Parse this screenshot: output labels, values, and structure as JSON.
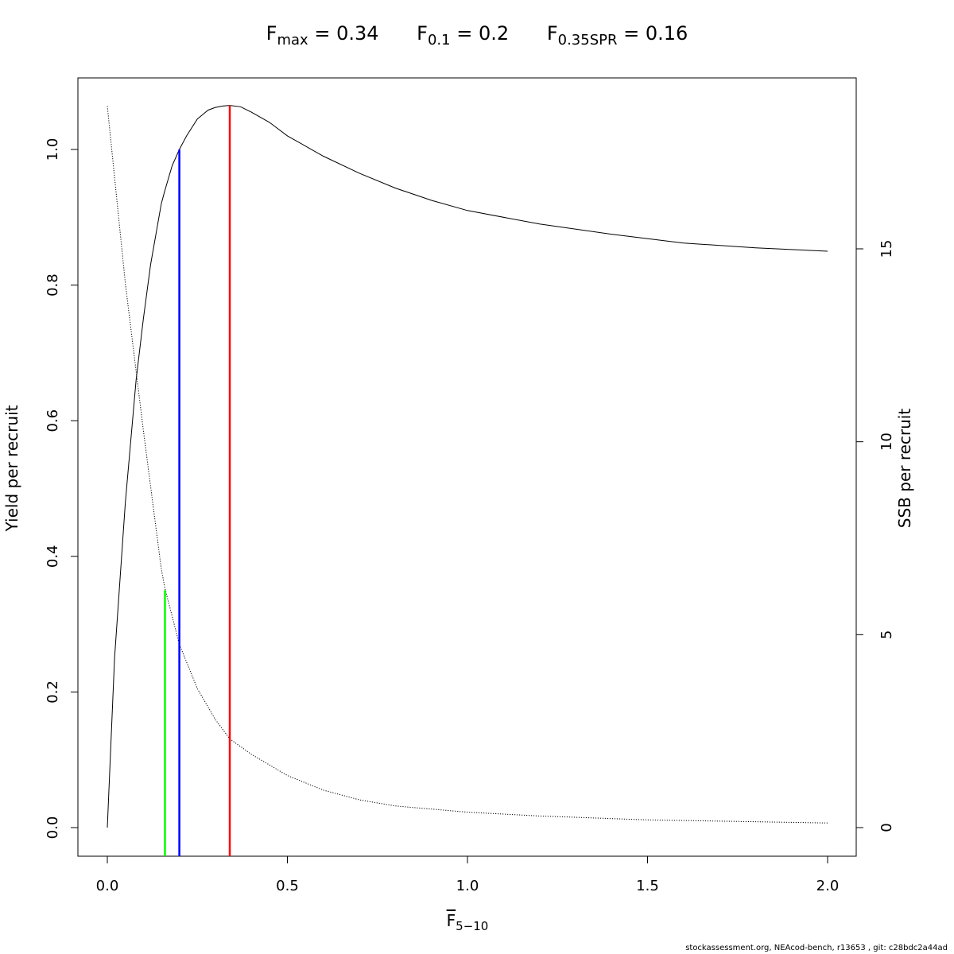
{
  "title": {
    "fmax": {
      "label": "F",
      "sub": "max",
      "text": "= 0.34"
    },
    "f01": {
      "label": "F",
      "sub": "0.1",
      "text": "= 0.2"
    },
    "fspr": {
      "label": "F",
      "sub": "0.35SPR",
      "text": "= 0.16"
    }
  },
  "xlabel": {
    "label": "F",
    "sub": "5−10"
  },
  "footer": "stockassessment.org, NEAcod-bench, r13653 , git: c28bdc2a44ad",
  "chart_data": {
    "type": "line",
    "xlim": [
      0,
      2
    ],
    "ylim_left": [
      0,
      1.05
    ],
    "ylim_right": [
      0,
      19
    ],
    "x_ticks": [
      "0.0",
      "0.5",
      "1.0",
      "1.5",
      "2.0"
    ],
    "y_ticks_left": [
      "0.0",
      "0.2",
      "0.4",
      "0.6",
      "0.8",
      "1.0"
    ],
    "y_ticks_right": [
      "0",
      "5",
      "10",
      "15"
    ],
    "ylabel_left": "Yield per recruit",
    "ylabel_right": "SSB per recruit",
    "grid": false,
    "series": [
      {
        "axis": "left",
        "style": "solid",
        "color": "#000000",
        "x": [
          0.0,
          0.02,
          0.05,
          0.08,
          0.1,
          0.12,
          0.15,
          0.16,
          0.18,
          0.2,
          0.22,
          0.25,
          0.28,
          0.3,
          0.32,
          0.34,
          0.37,
          0.4,
          0.45,
          0.5,
          0.6,
          0.7,
          0.8,
          0.9,
          1.0,
          1.2,
          1.4,
          1.6,
          1.8,
          2.0
        ],
        "y": [
          0.0,
          0.25,
          0.48,
          0.66,
          0.75,
          0.83,
          0.92,
          0.94,
          0.976,
          1.0,
          1.02,
          1.045,
          1.058,
          1.062,
          1.064,
          1.065,
          1.063,
          1.055,
          1.04,
          1.02,
          0.99,
          0.965,
          0.943,
          0.925,
          0.91,
          0.89,
          0.875,
          0.862,
          0.855,
          0.85
        ]
      },
      {
        "axis": "right",
        "style": "dotted",
        "color": "#000000",
        "x": [
          0.0,
          0.05,
          0.1,
          0.15,
          0.16,
          0.2,
          0.25,
          0.3,
          0.34,
          0.4,
          0.5,
          0.6,
          0.7,
          0.8,
          1.0,
          1.2,
          1.5,
          2.0
        ],
        "y": [
          18.7,
          14.1,
          10.3,
          6.7,
          6.2,
          4.75,
          3.6,
          2.8,
          2.3,
          1.9,
          1.35,
          0.97,
          0.72,
          0.56,
          0.4,
          0.3,
          0.2,
          0.12
        ]
      }
    ],
    "reference_lines": [
      {
        "name": "Fmax",
        "x": 0.34,
        "y_top": 1.065,
        "color": "#ff0000"
      },
      {
        "name": "F0.1",
        "x": 0.2,
        "y_top": 1.0,
        "color": "#0000ff"
      },
      {
        "name": "F0.35SPR",
        "x": 0.16,
        "y_top": 0.35,
        "color": "#00ff00"
      }
    ]
  }
}
